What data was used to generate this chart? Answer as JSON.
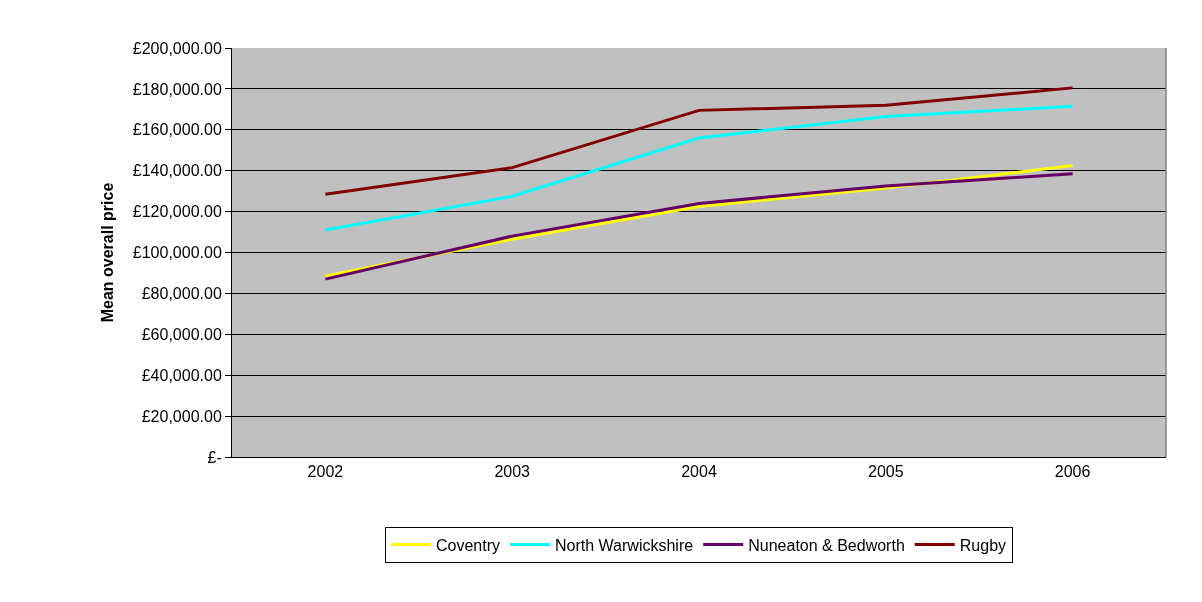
{
  "chart_data": {
    "type": "line",
    "ylabel": "Mean overall price",
    "categories": [
      "2002",
      "2003",
      "2004",
      "2005",
      "2006"
    ],
    "series": [
      {
        "name": "Coventry",
        "color": "#ffff00",
        "values": [
          88500,
          106500,
          122500,
          131500,
          142500
        ]
      },
      {
        "name": "North Warwickshire",
        "color": "#00ffff",
        "values": [
          111000,
          127500,
          156000,
          166500,
          171500
        ]
      },
      {
        "name": "Nuneaton & Bedworth",
        "color": "#660066",
        "values": [
          87000,
          108000,
          124000,
          132500,
          138500
        ]
      },
      {
        "name": "Rugby",
        "color": "#800000",
        "values": [
          128500,
          141500,
          169500,
          172000,
          180500
        ]
      }
    ],
    "ylim": [
      0,
      200000
    ],
    "yticks": [
      {
        "value": 0,
        "label": "£-"
      },
      {
        "value": 20000,
        "label": "£20,000.00"
      },
      {
        "value": 40000,
        "label": "£40,000.00"
      },
      {
        "value": 60000,
        "label": "£60,000.00"
      },
      {
        "value": 80000,
        "label": "£80,000.00"
      },
      {
        "value": 100000,
        "label": "£100,000.00"
      },
      {
        "value": 120000,
        "label": "£120,000.00"
      },
      {
        "value": 140000,
        "label": "£140,000.00"
      },
      {
        "value": 160000,
        "label": "£160,000.00"
      },
      {
        "value": 180000,
        "label": "£180,000.00"
      },
      {
        "value": 200000,
        "label": "£200,000.00"
      }
    ],
    "grid": "y",
    "legend": "bottom",
    "marker": "none",
    "line_style": "solid"
  }
}
